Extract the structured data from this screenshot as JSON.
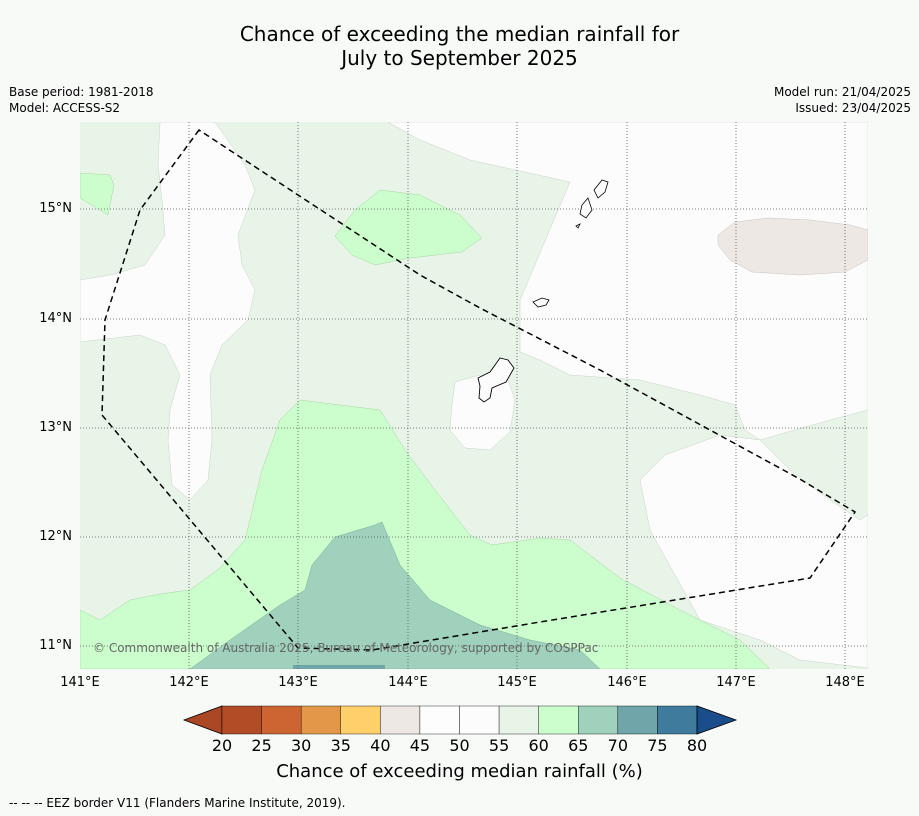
{
  "header": {
    "title_line1": "Chance of exceeding the median rainfall for",
    "title_line2": "July to September 2025",
    "base_period": "Base period: 1981-2018",
    "model": "Model: ACCESS-S2",
    "model_run": "Model run: 21/04/2025",
    "issued": "Issued: 23/04/2025"
  },
  "map": {
    "lat_labels": [
      "15°N",
      "14°N",
      "13°N",
      "12°N",
      "11°N"
    ],
    "lon_labels": [
      "141°E",
      "142°E",
      "143°E",
      "144°E",
      "145°E",
      "146°E",
      "147°E",
      "148°E"
    ],
    "copyright": "© Commonwealth of Australia 2025, Bureau of Meteorology, supported by COSPPac",
    "category_colors": {
      "45-50": "#ede8e3",
      "50-55": "#fbfcfb",
      "55-60": "#e9f4e8",
      "60-65": "#ccfdcc",
      "65-70": "#9fd1bc"
    }
  },
  "colorbar": {
    "ticks": [
      "20",
      "25",
      "30",
      "35",
      "40",
      "45",
      "50",
      "55",
      "60",
      "65",
      "70",
      "75",
      "80"
    ],
    "colors": [
      "#ac4726",
      "#b24c27",
      "#cd6532",
      "#e39849",
      "#fdd06a",
      "#ede8e3",
      "#fdfdfd",
      "#fbfcfb",
      "#e9f4e8",
      "#ccfdcc",
      "#9fd1bc",
      "#70a6aa",
      "#3f7b9c",
      "#1a4d8c"
    ],
    "label": "Chance of exceeding median rainfall (%)"
  },
  "footnote": "--  --  -- EEZ border V11 (Flanders Marine Institute, 2019)."
}
